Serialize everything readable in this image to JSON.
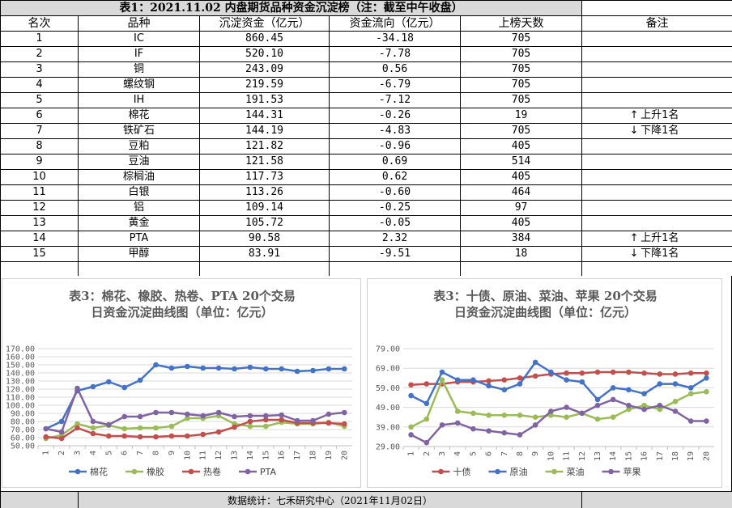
{
  "table": {
    "title": "表1：2021.11.02 内盘期货品种资金沉淀榜（注：截至中午收盘）",
    "headers": [
      "名次",
      "品种",
      "沉淀资金（亿元）",
      "资金流向（亿元）",
      "上榜天数",
      "备注"
    ],
    "rows": [
      {
        "rank": "1",
        "name": "IC",
        "capital": "860.45",
        "flow": "-34.18",
        "days": "705",
        "note": "",
        "note_icon": ""
      },
      {
        "rank": "2",
        "name": "IF",
        "capital": "520.10",
        "flow": "-7.78",
        "days": "705",
        "note": "",
        "note_icon": ""
      },
      {
        "rank": "3",
        "name": "铜",
        "capital": "243.09",
        "flow": "0.56",
        "days": "705",
        "note": "",
        "note_icon": ""
      },
      {
        "rank": "4",
        "name": "螺纹钢",
        "capital": "219.59",
        "flow": "-6.79",
        "days": "705",
        "note": "",
        "note_icon": ""
      },
      {
        "rank": "5",
        "name": "IH",
        "capital": "191.53",
        "flow": "-7.12",
        "days": "705",
        "note": "",
        "note_icon": ""
      },
      {
        "rank": "6",
        "name": "棉花",
        "capital": "144.31",
        "flow": "-0.26",
        "days": "19",
        "note": "上升1名",
        "note_icon": "up-arrow-icon"
      },
      {
        "rank": "7",
        "name": "铁矿石",
        "capital": "144.19",
        "flow": "-4.83",
        "days": "705",
        "note": "下降1名",
        "note_icon": "down-arrow-icon"
      },
      {
        "rank": "8",
        "name": "豆粕",
        "capital": "121.82",
        "flow": "-0.96",
        "days": "405",
        "note": "",
        "note_icon": ""
      },
      {
        "rank": "9",
        "name": "豆油",
        "capital": "121.58",
        "flow": "0.69",
        "days": "514",
        "note": "",
        "note_icon": ""
      },
      {
        "rank": "10",
        "name": "棕榈油",
        "capital": "117.73",
        "flow": "0.62",
        "days": "405",
        "note": "",
        "note_icon": ""
      },
      {
        "rank": "11",
        "name": "白银",
        "capital": "113.26",
        "flow": "-0.60",
        "days": "464",
        "note": "",
        "note_icon": ""
      },
      {
        "rank": "12",
        "name": "铝",
        "capital": "109.14",
        "flow": "-0.25",
        "days": "97",
        "note": "",
        "note_icon": ""
      },
      {
        "rank": "13",
        "name": "黄金",
        "capital": "105.72",
        "flow": "-0.05",
        "days": "405",
        "note": "",
        "note_icon": ""
      },
      {
        "rank": "14",
        "name": "PTA",
        "capital": "90.58",
        "flow": "2.32",
        "days": "384",
        "note": "上升1名",
        "note_icon": "up-arrow-icon"
      },
      {
        "rank": "15",
        "name": "甲醇",
        "capital": "83.91",
        "flow": "-9.51",
        "days": "18",
        "note": "下降1名",
        "note_icon": "down-arrow-icon"
      }
    ]
  },
  "chart_data": [
    {
      "type": "line",
      "title": [
        "表3：棉花、橡胶、热卷、PTA 20个交易",
        "日资金沉淀曲线图（单位：亿元）"
      ],
      "x": [
        "1",
        "2",
        "3",
        "4",
        "5",
        "6",
        "7",
        "8",
        "9",
        "10",
        "11",
        "12",
        "13",
        "14",
        "15",
        "16",
        "17",
        "18",
        "19",
        "20"
      ],
      "ylim": [
        50,
        170
      ],
      "yticks": [
        "50.00",
        "60.00",
        "70.00",
        "80.00",
        "90.00",
        "100.00",
        "110.00",
        "120.00",
        "130.00",
        "140.00",
        "150.00",
        "160.00",
        "170.00"
      ],
      "grid": true,
      "legend": "bottom",
      "series": [
        {
          "name": "棉花",
          "color": "#4472c4",
          "values": [
            71,
            80,
            118,
            123,
            129,
            122,
            131,
            150,
            146,
            148,
            146,
            146,
            145,
            147,
            145,
            145,
            142,
            143,
            145,
            145
          ]
        },
        {
          "name": "橡胶",
          "color": "#9bbb59",
          "values": [
            59,
            63,
            77,
            72,
            75,
            71,
            72,
            72,
            74,
            84,
            84,
            87,
            77,
            74,
            74,
            79,
            77,
            77,
            79,
            74
          ]
        },
        {
          "name": "热卷",
          "color": "#c0504d",
          "values": [
            61,
            59,
            72,
            65,
            62,
            62,
            61,
            61,
            62,
            62,
            64,
            67,
            73,
            80,
            82,
            82,
            78,
            78,
            78,
            77
          ]
        },
        {
          "name": "PTA",
          "color": "#8064a2",
          "values": [
            71,
            67,
            121,
            80,
            76,
            86,
            86,
            91,
            91,
            89,
            87,
            91,
            86,
            87,
            87,
            88,
            81,
            81,
            89,
            91
          ]
        }
      ]
    },
    {
      "type": "line",
      "title": [
        "表3：十债、原油、菜油、苹果 20个交易",
        "日资金沉淀曲线图（单位：亿元）"
      ],
      "x": [
        "1",
        "2",
        "3",
        "4",
        "5",
        "6",
        "7",
        "8",
        "9",
        "10",
        "11",
        "12",
        "13",
        "14",
        "15",
        "16",
        "17",
        "18",
        "19",
        "20"
      ],
      "ylim": [
        29,
        79
      ],
      "yticks": [
        "29.00",
        "39.00",
        "49.00",
        "59.00",
        "69.00",
        "79.00"
      ],
      "grid": true,
      "legend": "bottom",
      "series": [
        {
          "name": "十债",
          "color": "#c0504d",
          "values": [
            60.5,
            61,
            61,
            62,
            62,
            62.5,
            63,
            64,
            65,
            66,
            66.5,
            66.5,
            67,
            67,
            67,
            66.5,
            66,
            66,
            66.5,
            66.5
          ]
        },
        {
          "name": "原油",
          "color": "#4472c4",
          "values": [
            55,
            51,
            67,
            63,
            63,
            60,
            58,
            61,
            72,
            67,
            63,
            62,
            53,
            59,
            58,
            56,
            61,
            61,
            59,
            64
          ]
        },
        {
          "name": "菜油",
          "color": "#9bbb59",
          "values": [
            39,
            43,
            63,
            47,
            46,
            45,
            45,
            45,
            44,
            45,
            44,
            46,
            43,
            44,
            48,
            50,
            48,
            52,
            56,
            57
          ]
        },
        {
          "name": "苹果",
          "color": "#8064a2",
          "values": [
            35,
            31,
            40,
            41,
            38,
            37,
            36,
            35,
            40,
            47,
            49,
            46,
            50,
            53,
            50,
            48,
            50,
            47,
            42,
            42
          ]
        }
      ]
    }
  ],
  "footer": {
    "text": "数据统计：七禾研究中心（2021年11月02日）"
  }
}
